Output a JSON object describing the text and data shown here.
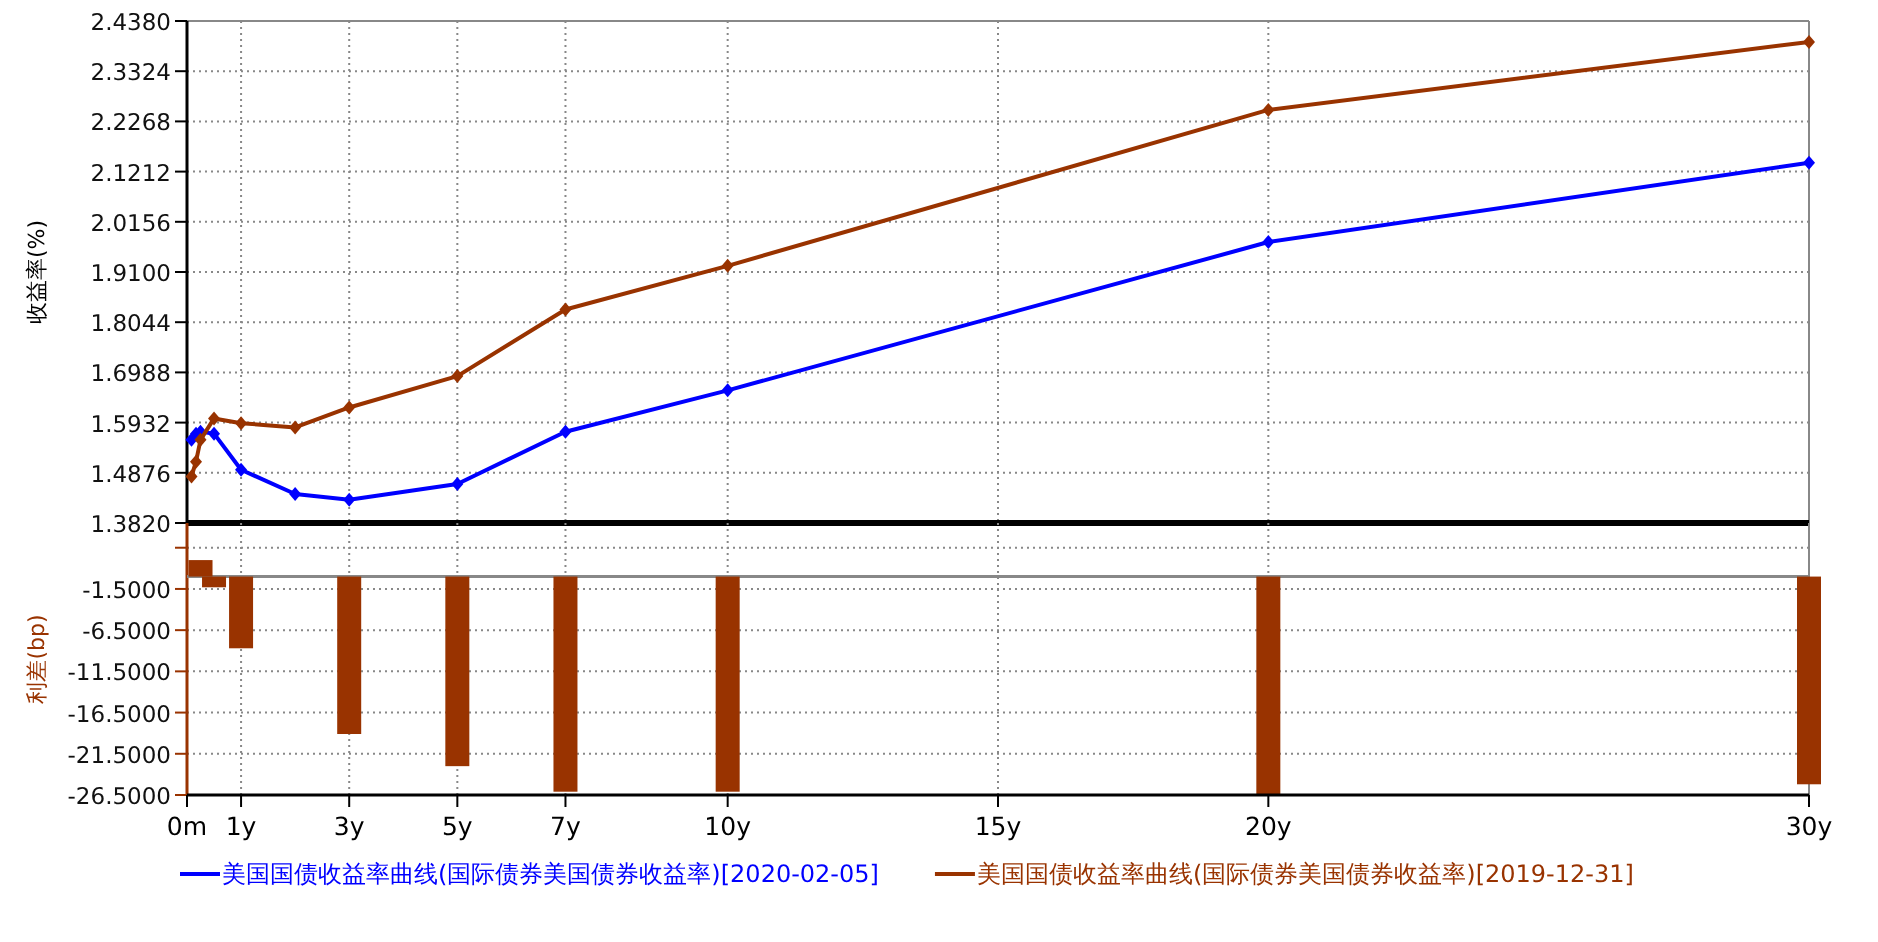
{
  "chart_data": [
    {
      "type": "line",
      "ylabel": "收益率(%)",
      "x": [
        0.0833,
        0.1667,
        0.25,
        0.5,
        1,
        2,
        3,
        5,
        7,
        10,
        20,
        30
      ],
      "xlim": [
        0,
        30
      ],
      "xticks": [
        {
          "value": 0,
          "label": null
        },
        {
          "value": 1,
          "label": null
        },
        {
          "value": 3,
          "label": null
        },
        {
          "value": 5,
          "label": null
        },
        {
          "value": 7,
          "label": null
        },
        {
          "value": 10,
          "label": null
        },
        {
          "value": 15,
          "label": null
        },
        {
          "value": 20,
          "label": null
        },
        {
          "value": 30,
          "label": null
        }
      ],
      "ylim": [
        1.382,
        2.438
      ],
      "yticks": [
        {
          "value": 1.382,
          "label": "1.3820"
        },
        {
          "value": 1.4876,
          "label": "1.4876"
        },
        {
          "value": 1.5932,
          "label": "1.5932"
        },
        {
          "value": 1.6988,
          "label": "1.6988"
        },
        {
          "value": 1.8044,
          "label": "1.8044"
        },
        {
          "value": 1.91,
          "label": "1.9100"
        },
        {
          "value": 2.0156,
          "label": "2.0156"
        },
        {
          "value": 2.1212,
          "label": "2.1212"
        },
        {
          "value": 2.2268,
          "label": "2.2268"
        },
        {
          "value": 2.3324,
          "label": "2.3324"
        },
        {
          "value": 2.438,
          "label": "2.4380"
        }
      ],
      "tick_labels": "y",
      "grid": true,
      "legend": "bottom",
      "marker": "diamond",
      "series": [
        {
          "name": "美国国债收益率曲线(国际债券美国债券收益率)[2020-02-05]",
          "color": "#0000ff",
          "values": [
            1.557,
            1.57,
            1.574,
            1.57,
            1.494,
            1.443,
            1.431,
            1.464,
            1.574,
            1.661,
            1.973,
            2.14
          ]
        },
        {
          "name": "美国国债收益率曲线(国际债券美国债券收益率)[2019-12-31]",
          "color": "#993300",
          "values": [
            1.48,
            1.511,
            1.557,
            1.602,
            1.592,
            1.583,
            1.625,
            1.691,
            1.831,
            1.923,
            2.251,
            2.394
          ]
        }
      ]
    },
    {
      "type": "bar",
      "ylabel": "利差(bp)",
      "x": [
        0.25,
        0.5,
        1,
        3,
        5,
        7,
        10,
        20,
        30
      ],
      "values": [
        2.0,
        -1.3,
        -8.7,
        -19.1,
        -23.0,
        -26.1,
        -26.1,
        -26.4,
        -25.2
      ],
      "color": "#993300",
      "xlim": [
        0,
        30
      ],
      "xticks": [
        {
          "value": 0,
          "label": "0m"
        },
        {
          "value": 1,
          "label": "1y"
        },
        {
          "value": 3,
          "label": "3y"
        },
        {
          "value": 5,
          "label": "5y"
        },
        {
          "value": 7,
          "label": "7y"
        },
        {
          "value": 10,
          "label": "10y"
        },
        {
          "value": 15,
          "label": "15y"
        },
        {
          "value": 20,
          "label": "20y"
        },
        {
          "value": 30,
          "label": "30y"
        }
      ],
      "ylim": [
        -26.5,
        6.5
      ],
      "yticks": [
        {
          "value": 3.5,
          "label": null
        },
        {
          "value": -1.5,
          "label": "-1.5000"
        },
        {
          "value": -6.5,
          "label": "-6.5000"
        },
        {
          "value": -11.5,
          "label": "-11.5000"
        },
        {
          "value": -16.5,
          "label": "-16.5000"
        },
        {
          "value": -21.5,
          "label": "-21.5000"
        },
        {
          "value": -26.5,
          "label": "-26.5000"
        }
      ],
      "grid": true
    }
  ]
}
